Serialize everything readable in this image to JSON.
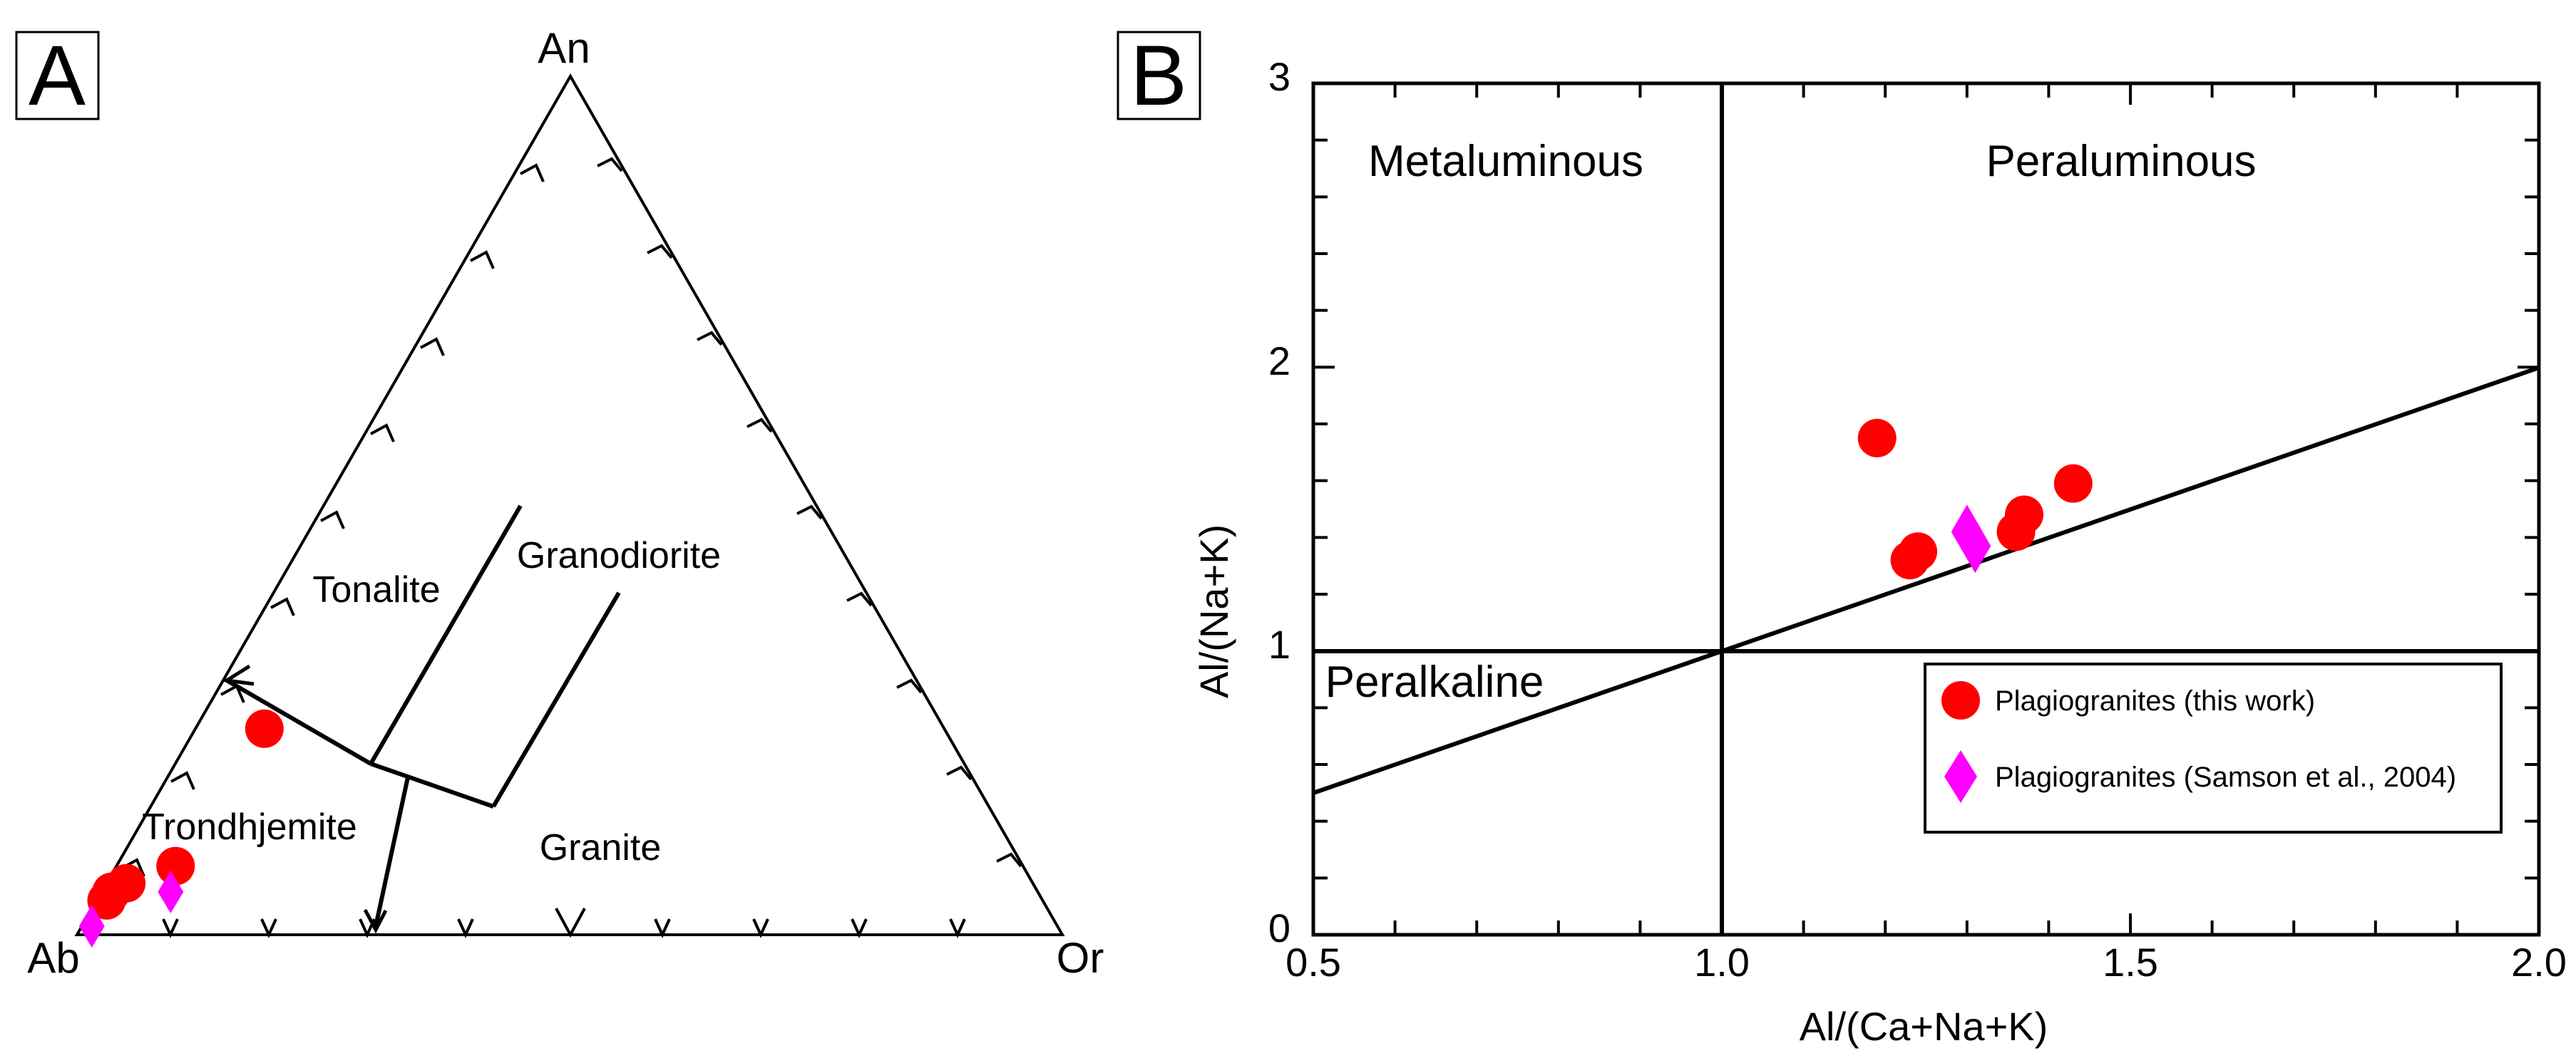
{
  "chart_data": [
    {
      "panel": "A",
      "type": "scatter",
      "subtype": "ternary",
      "title": "",
      "vertices": {
        "top": "An",
        "left": "Ab",
        "right": "Or"
      },
      "fields": [
        "Tonalite",
        "Granodiorite",
        "Trondhjemite",
        "Granite"
      ],
      "series": [
        {
          "name": "Plagiogranites (this work)",
          "marker": "circle",
          "color": "#ff0000",
          "points": [
            {
              "An": 6,
              "Ab": 92,
              "Or": 2
            },
            {
              "An": 5,
              "Ab": 94,
              "Or": 1
            },
            {
              "An": 4,
              "Ab": 95,
              "Or": 1
            },
            {
              "An": 8,
              "Ab": 86,
              "Or": 6
            },
            {
              "An": 24,
              "Ab": 69,
              "Or": 7
            }
          ]
        },
        {
          "name": "Plagiogranites (Samson et al., 2004)",
          "marker": "diamond",
          "color": "#ff00ff",
          "points": [
            {
              "An": 5,
              "Ab": 88,
              "Or": 7
            },
            {
              "An": 1,
              "Ab": 98,
              "Or": 1
            }
          ]
        }
      ]
    },
    {
      "panel": "B",
      "type": "scatter",
      "title": "",
      "xlabel": "Al/(Ca+Na+K)",
      "ylabel": "Al/(Na+K)",
      "xlim": [
        0.5,
        2.0
      ],
      "ylim": [
        0,
        3
      ],
      "xticks": [
        "0.5",
        "1.0",
        "1.5",
        "2.0"
      ],
      "yticks": [
        "0",
        "1",
        "2",
        "3"
      ],
      "regions": [
        "Metaluminous",
        "Peraluminous",
        "Peralkaline"
      ],
      "legend_position": "bottom-right",
      "series": [
        {
          "name": "Plagiogranites (this work)",
          "marker": "circle",
          "color": "#ff0000",
          "points": [
            [
              1.19,
              1.75
            ],
            [
              1.43,
              1.59
            ],
            [
              1.37,
              1.48
            ],
            [
              1.36,
              1.42
            ],
            [
              1.24,
              1.35
            ],
            [
              1.23,
              1.32
            ]
          ]
        },
        {
          "name": "Plagiogranites (Samson et al., 2004)",
          "marker": "diamond",
          "color": "#ff00ff",
          "points": [
            [
              1.3,
              1.42
            ],
            [
              1.31,
              1.37
            ]
          ]
        }
      ]
    }
  ]
}
